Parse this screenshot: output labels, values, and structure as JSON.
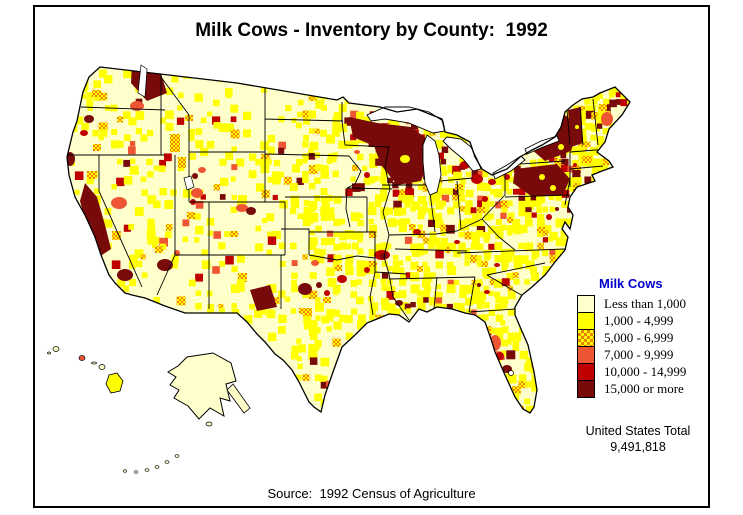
{
  "title": "Milk Cows - Inventory by County:  1992",
  "map": {
    "region": "United States",
    "water_color": "#FFFFFF",
    "boundary_color": "#000000"
  },
  "legend": {
    "title": "Milk Cows",
    "title_color": "#0000CC",
    "classes": [
      {
        "label": "Less than 1,000",
        "color": "#FFFFCC",
        "pattern": "solid"
      },
      {
        "label": "1,000 - 4,999",
        "color": "#FFFF00",
        "pattern": "solid"
      },
      {
        "label": "5,000 - 6,999",
        "color": "#F08200",
        "pattern": "checker-on-yellow",
        "pattern_colors": [
          "#F08200",
          "#FFFF00"
        ]
      },
      {
        "label": "7,000 - 9,999",
        "color": "#EE5533",
        "pattern": "solid"
      },
      {
        "label": "10,000 - 14,999",
        "color": "#C00000",
        "pattern": "solid"
      },
      {
        "label": "15,000 or more",
        "color": "#780A0A",
        "pattern": "solid"
      }
    ]
  },
  "total": {
    "label": "United States Total",
    "value": "9,491,818"
  },
  "source": "Source:  1992 Census of Agriculture"
}
